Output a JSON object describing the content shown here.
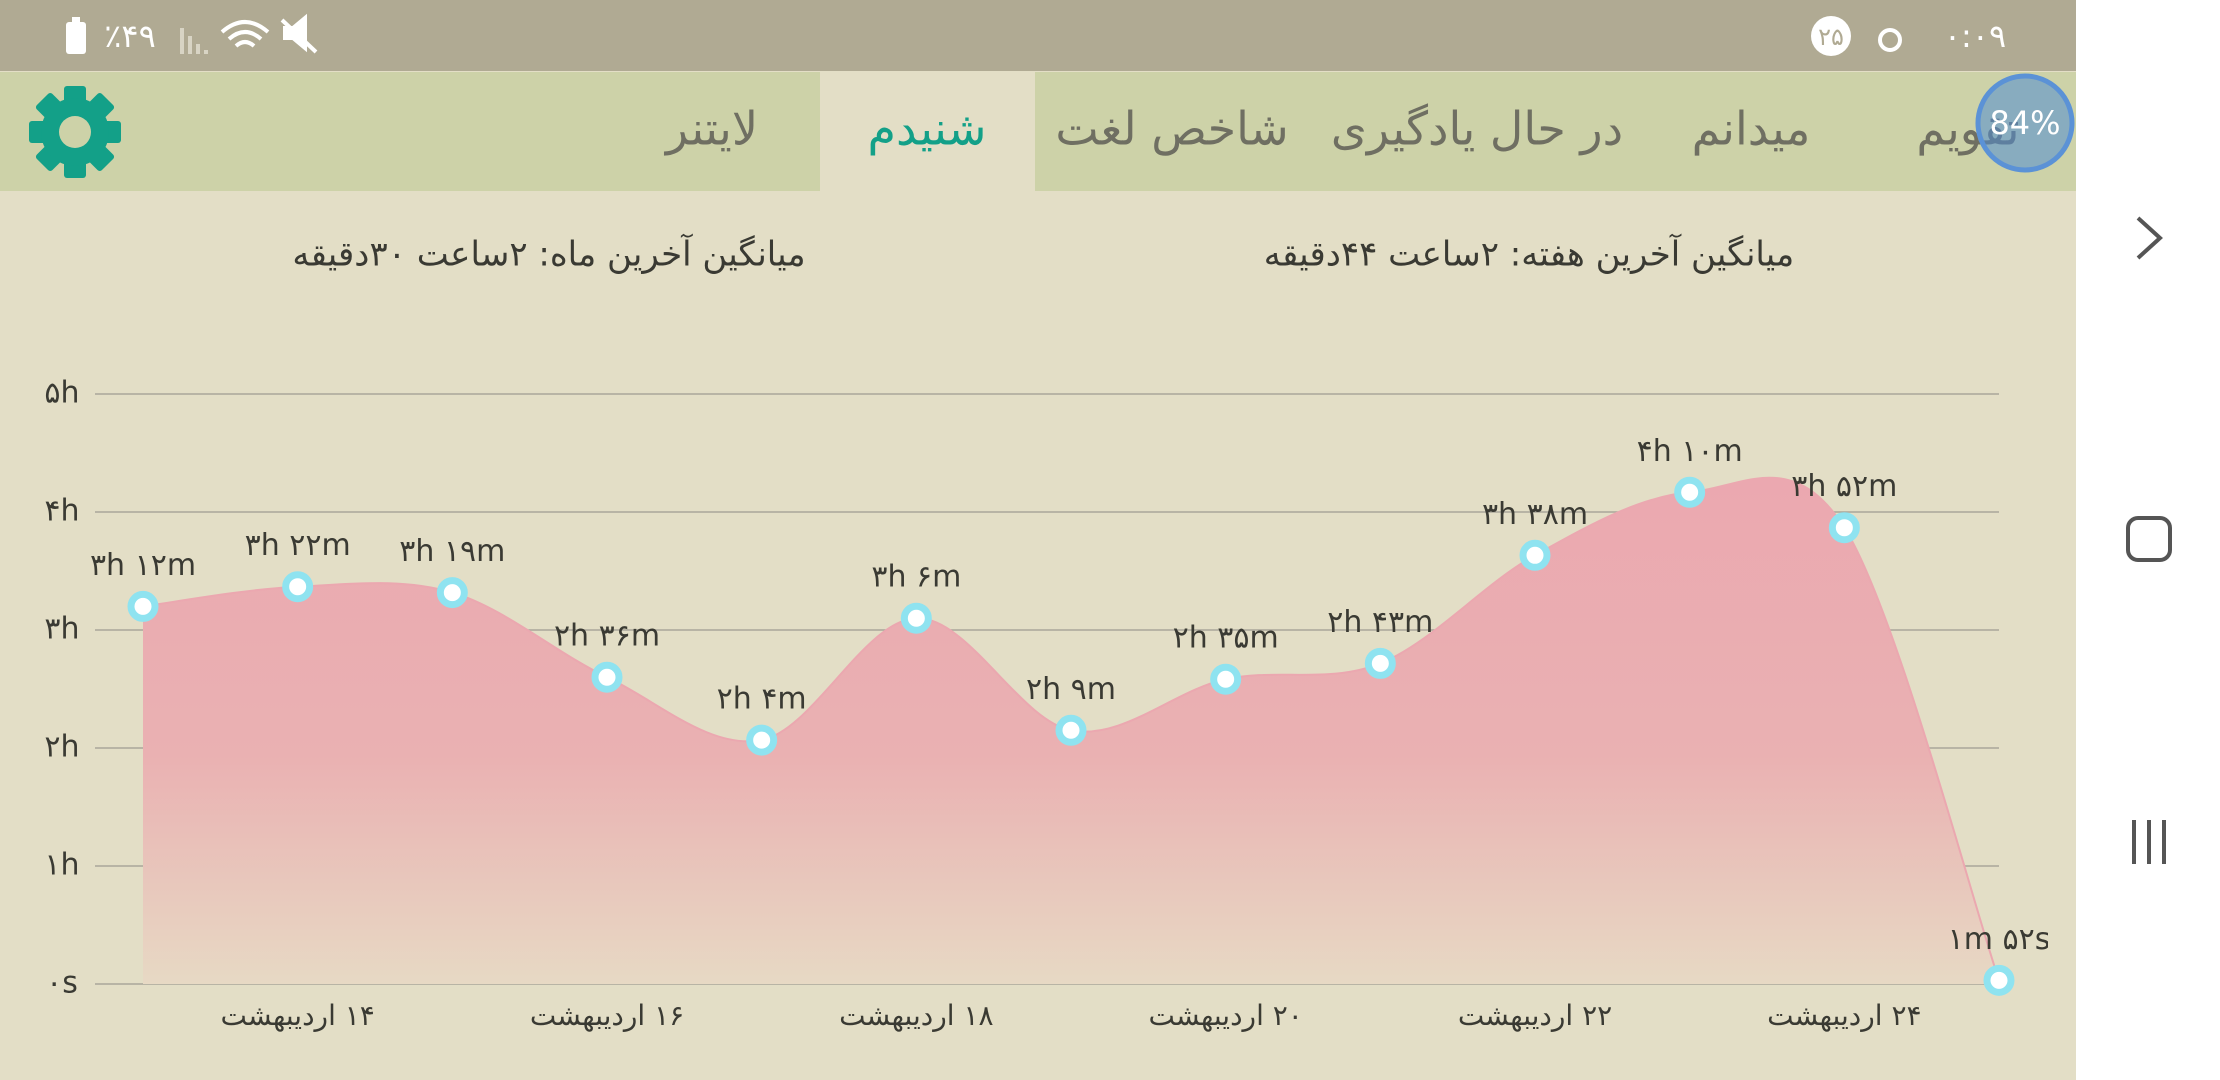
{
  "status_bar": {
    "battery": "٪۴۹",
    "time": "۰:۰۹",
    "notification_count": "۲۵"
  },
  "overlay_badge": "84%",
  "tabs": [
    {
      "label": "تقویم",
      "active": false
    },
    {
      "label": "میدانم",
      "active": false
    },
    {
      "label": "در حال یادگیری",
      "active": false
    },
    {
      "label": "شاخص لغت",
      "active": false
    },
    {
      "label": "شنیدم",
      "active": true
    },
    {
      "label": "لایتنر",
      "active": false
    }
  ],
  "summary": {
    "week_average": "میانگین آخرین هفته: ۲ساعت  ۴۴دقیقه",
    "month_average": "میانگین آخرین ماه: ۲ساعت  ۳۰دقیقه"
  },
  "chart_data": {
    "type": "area",
    "categories": [
      null,
      "۱۴ اردیبهشت",
      null,
      "۱۶ اردیبهشت",
      null,
      "۱۸ اردیبهشت",
      null,
      "۲۰ اردیبهشت",
      null,
      "۲۲ اردیبهشت",
      null,
      "۲۴ اردیبهشت",
      null
    ],
    "values": [
      3.2,
      3.367,
      3.317,
      2.6,
      2.067,
      3.1,
      2.15,
      2.583,
      2.717,
      3.633,
      4.167,
      3.867,
      0.031
    ],
    "value_labels": [
      "۳h ۱۲m",
      "۳h ۲۲m",
      "۳h ۱۹m",
      "۲h ۳۶m",
      "۲h ۴m",
      "۳h ۶m",
      "۲h ۹m",
      "۲h ۳۵m",
      "۲h ۴۳m",
      "۳h ۳۸m",
      "۴h ۱۰m",
      "۳h ۵۲m",
      "۱m ۵۲s"
    ],
    "color": "#eba8b0",
    "marker_color": "#8fe3f0",
    "ylim": [
      0,
      5
    ],
    "yticks": [
      {
        "value": 0,
        "label": "۰s"
      },
      {
        "value": 1,
        "label": "۱h"
      },
      {
        "value": 2,
        "label": "۲h"
      },
      {
        "value": 3,
        "label": "۳h"
      },
      {
        "value": 4,
        "label": "۴h"
      },
      {
        "value": 5,
        "label": "۵h"
      }
    ],
    "grid": true
  }
}
